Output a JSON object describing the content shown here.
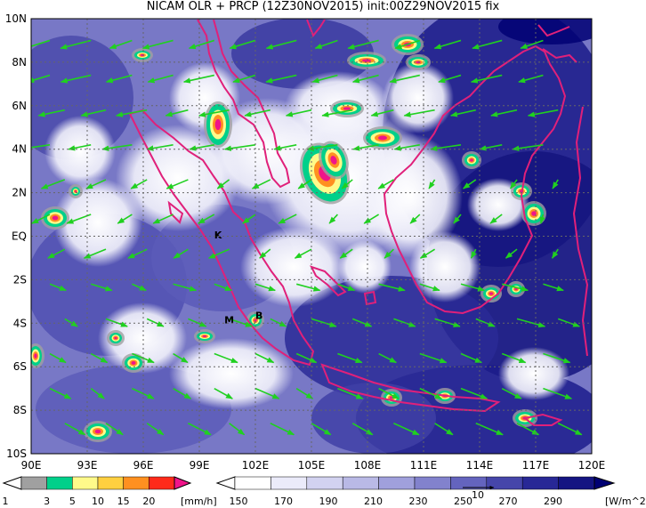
{
  "title": "NICAM OLR + PRCP (12Z30NOV2015) init:00Z29NOV2015 fix",
  "lat_labels": [
    "10N",
    "8N",
    "6N",
    "4N",
    "2N",
    "EQ",
    "2S",
    "4S",
    "6S",
    "8S",
    "10S"
  ],
  "lon_labels": [
    "90E",
    "93E",
    "96E",
    "99E",
    "102E",
    "105E",
    "108E",
    "111E",
    "114E",
    "117E",
    "120E"
  ],
  "extent": {
    "lon_min": 90,
    "lon_max": 120,
    "lat_min": -10,
    "lat_max": 10
  },
  "place_markers": [
    {
      "text": "K",
      "lon": 100.0,
      "lat": -0.1
    },
    {
      "text": "M",
      "lon": 100.6,
      "lat": -4.0
    },
    {
      "text": "B",
      "lon": 102.2,
      "lat": -3.8
    }
  ],
  "precip_legend": {
    "unit": "[mm/h]",
    "labels": [
      "1",
      "3",
      "5",
      "10",
      "15",
      "20"
    ],
    "colors": [
      "#a0a0a0",
      "#00d08a",
      "#fffa8a",
      "#ffd040",
      "#ff9020",
      "#ff2a1a",
      "#f0148a"
    ]
  },
  "olr_legend": {
    "unit": "[W/m^2]",
    "labels": [
      "150",
      "170",
      "190",
      "210",
      "230",
      "250",
      "270",
      "290"
    ],
    "vector_ref_label": "10",
    "colors": [
      "#ffffff",
      "#ebebfa",
      "#d2d2f0",
      "#b9b9e6",
      "#a0a0dc",
      "#8282cd",
      "#6464be",
      "#4646aa",
      "#282896",
      "#141482",
      "#000073"
    ]
  },
  "colors": {
    "coast": "#e0207a",
    "wind": "#20d020",
    "grid": "#666666"
  }
}
